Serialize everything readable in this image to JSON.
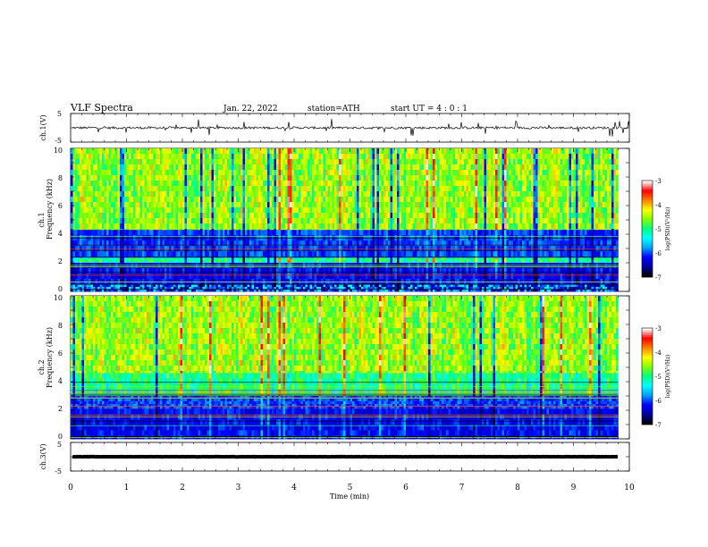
{
  "header": {
    "title": "VLF  Spectra",
    "date": "Jan. 22, 2022",
    "station": "station=ATH",
    "start": "start  UT  =   4  : 0   : 1"
  },
  "chart_data": [
    {
      "type": "line",
      "panel": "ch1-waveform",
      "ylabel": "ch.1(V)",
      "ylim": [
        -5,
        5
      ],
      "yticks": [
        "5",
        "-5"
      ],
      "xlim": [
        0,
        10
      ],
      "trace_color": "#000000",
      "series": [
        {
          "baseline": 0.0,
          "noise_amplitude": 0.4,
          "spikes": "frequent bipolar spikes up to about ±3 V"
        }
      ]
    },
    {
      "type": "heatmap",
      "panel": "ch1-spectrogram",
      "ylabel": "Frequency  (kHz)",
      "channel_label": "ch.1",
      "ylim": [
        0,
        10
      ],
      "yticks": [
        "0",
        "2",
        "4",
        "6",
        "8",
        "10"
      ],
      "xlim": [
        0,
        9.8
      ],
      "bands": [
        {
          "from_khz": 4.3,
          "to_khz": 10.0,
          "level": "high (green-yellow, with vertical red/black sferic streaks)"
        },
        {
          "from_khz": 2.4,
          "to_khz": 4.3,
          "level": "low (blue)"
        },
        {
          "from_khz": 2.0,
          "to_khz": 2.4,
          "level": "medium (green horizontal lines)"
        },
        {
          "from_khz": 0.5,
          "to_khz": 2.0,
          "level": "very low (dark blue)"
        },
        {
          "from_khz": 0.0,
          "to_khz": 0.5,
          "level": "black/blue with bright horizontal lines"
        }
      ],
      "colorbar": {
        "label": "log(PSD)(V²/Hz)",
        "range": [
          -7,
          -3
        ],
        "ticks": [
          "-3",
          "-4",
          "-5",
          "-6",
          "-7"
        ]
      }
    },
    {
      "type": "heatmap",
      "panel": "ch2-spectrogram",
      "ylabel": "Frequency  (kHz)",
      "channel_label": "ch.2",
      "ylim": [
        0,
        10
      ],
      "yticks": [
        "0",
        "2",
        "4",
        "6",
        "8",
        "10"
      ],
      "xlim": [
        0,
        9.8
      ],
      "bands": [
        {
          "from_khz": 4.6,
          "to_khz": 10.0,
          "level": "high (green-yellow with red streaks)"
        },
        {
          "from_khz": 3.0,
          "to_khz": 4.6,
          "level": "medium (cyan-green with lines)"
        },
        {
          "from_khz": 2.1,
          "to_khz": 3.0,
          "level": "low (blue)"
        },
        {
          "from_khz": 0.0,
          "to_khz": 2.1,
          "level": "very low (blue/cyan with many horizontal lines)"
        }
      ],
      "colorbar": {
        "label": "log(PSD)(V²/Hz)",
        "range": [
          -7,
          -3
        ],
        "ticks": [
          "-3",
          "-4",
          "-5",
          "-6",
          "-7"
        ]
      }
    },
    {
      "type": "line",
      "panel": "ch3-waveform",
      "ylabel": "ch.3(V)",
      "ylim": [
        -5,
        5
      ],
      "yticks": [
        "5",
        "-5"
      ],
      "xlim": [
        0,
        9.8
      ],
      "trace_color": "#000000",
      "series": [
        {
          "baseline": 0.0,
          "noise_amplitude": 0.05
        }
      ]
    }
  ],
  "x_axis": {
    "label": "Time  (min)",
    "range": [
      0,
      10
    ],
    "ticks": [
      "0",
      "1",
      "2",
      "3",
      "4",
      "5",
      "6",
      "7",
      "8",
      "9",
      "10"
    ]
  },
  "colormap": [
    "#000000",
    "#0000a0",
    "#0000ff",
    "#00a0ff",
    "#00ffff",
    "#00ff80",
    "#80ff00",
    "#ffff00",
    "#ff8000",
    "#ff0000",
    "#ffffff"
  ]
}
